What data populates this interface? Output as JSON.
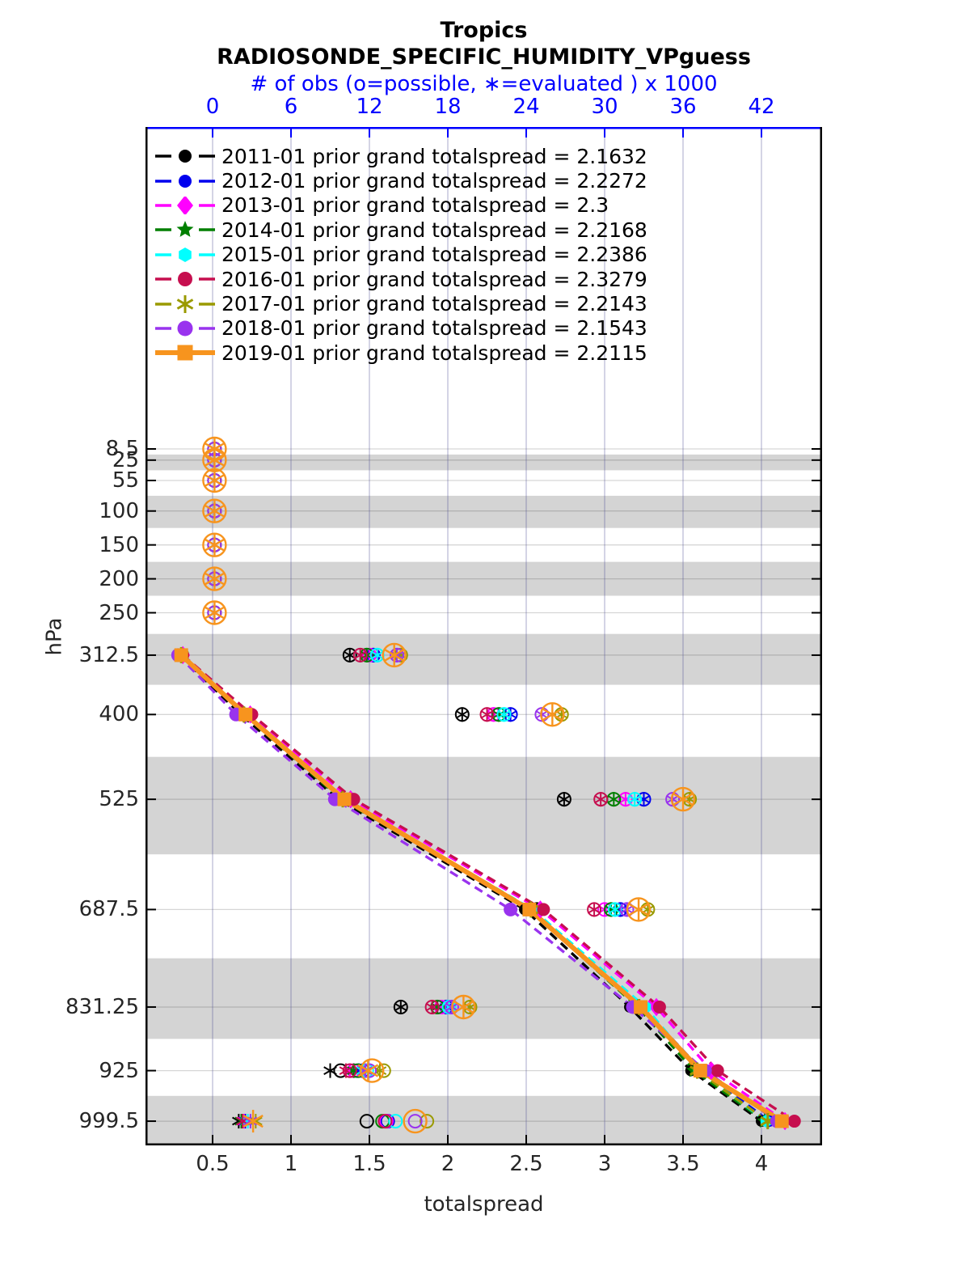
{
  "title": {
    "line1": "Tropics",
    "line2": "RADIOSONDE_SPECIFIC_HUMIDITY_VPguess"
  },
  "obs_axis": {
    "label": "# of obs (o=possible, ∗=evaluated ) x 1000",
    "tick_labels": [
      "0",
      "6",
      "12",
      "18",
      "24",
      "30",
      "36",
      "42"
    ],
    "ticks": [
      0,
      6,
      12,
      18,
      24,
      30,
      36,
      42
    ],
    "color": "#0000ff"
  },
  "x_axis": {
    "label": "totalspread",
    "tick_labels": [
      "0.5",
      "1",
      "1.5",
      "2",
      "2.5",
      "3",
      "3.5",
      "4"
    ],
    "ticks": [
      0.5,
      1,
      1.5,
      2,
      2.5,
      3,
      3.5,
      4
    ]
  },
  "y_axis": {
    "label": "hPa",
    "tick_labels": [
      "8.5",
      "25",
      "55",
      "100",
      "150",
      "200",
      "250",
      "312.5",
      "400",
      "525",
      "687.5",
      "831.25",
      "925",
      "999.5"
    ],
    "ticks": [
      8.5,
      25,
      55,
      100,
      150,
      200,
      250,
      312.5,
      400,
      525,
      687.5,
      831.25,
      925,
      999.5
    ]
  },
  "legend": {
    "items": [
      {
        "label": "2011-01 prior grand totalspread = 2.1632"
      },
      {
        "label": "2012-01 prior grand totalspread = 2.2272"
      },
      {
        "label": "2013-01 prior grand totalspread = 2.3"
      },
      {
        "label": "2014-01 prior grand totalspread = 2.2168"
      },
      {
        "label": "2015-01 prior grand totalspread = 2.2386"
      },
      {
        "label": "2016-01 prior grand totalspread = 2.3279"
      },
      {
        "label": "2017-01 prior grand totalspread = 2.2143"
      },
      {
        "label": "2018-01 prior grand totalspread = 2.1543"
      },
      {
        "label": "2019-01 prior grand totalspread = 2.2115"
      }
    ]
  },
  "chart_data": {
    "type": "line",
    "title": "Tropics",
    "subtitle": "RADIOSONDE_SPECIFIC_HUMIDITY_VPguess",
    "xlabel": "totalspread",
    "ylabel": "hPa",
    "x2label": "# of obs (o=possible, ∗=evaluated ) x 1000",
    "xlim": [
      0.07,
      4.39
    ],
    "obs_xlim": [
      -5.1,
      46.7
    ],
    "levels_hpa": [
      8.5,
      25,
      55,
      100,
      150,
      200,
      250,
      312.5,
      400,
      525,
      687.5,
      831.25,
      925,
      999.5
    ],
    "spread_levels_hpa": [
      312.5,
      400,
      525,
      687.5,
      831.25,
      925,
      999.5
    ],
    "shaded_levels": [
      25,
      100,
      200,
      312.5,
      525,
      831.25,
      999.5
    ],
    "shaded_color": "#d4d4d4",
    "grid": true,
    "legend_position": "top-left-inside",
    "series": [
      {
        "name": "2011-01",
        "grand_totalspread": 2.1632,
        "color": "#000000",
        "marker": "circle",
        "markersize": 7,
        "linestyle": "dashed",
        "big_obs_marker": false,
        "totalspread": [
          0.29,
          0.68,
          1.3,
          2.49,
          3.16,
          3.55,
          4.0
        ],
        "obs_possible": [
          0.15,
          0.15,
          0.15,
          0.15,
          0.15,
          0.15,
          0.15,
          10.5,
          19.1,
          26.9,
          24.8,
          14.4,
          9.8,
          11.8
        ],
        "obs_evaluated": [
          0.15,
          0.15,
          0.15,
          0.15,
          0.15,
          0.15,
          0.15,
          10.5,
          19.1,
          26.9,
          24.8,
          14.4,
          9.0,
          2.0
        ]
      },
      {
        "name": "2012-01",
        "grand_totalspread": 2.2272,
        "color": "#0000ee",
        "marker": "circle",
        "markersize": 7,
        "linestyle": "dashed",
        "big_obs_marker": false,
        "totalspread": [
          0.3,
          0.7,
          1.33,
          2.53,
          3.24,
          3.62,
          4.05
        ],
        "obs_possible": [
          0.15,
          0.15,
          0.15,
          0.15,
          0.15,
          0.15,
          0.15,
          12.3,
          22.8,
          33.0,
          31.2,
          17.9,
          11.5,
          13.4
        ],
        "obs_evaluated": [
          0.15,
          0.15,
          0.15,
          0.15,
          0.15,
          0.15,
          0.15,
          12.3,
          22.8,
          33.0,
          31.2,
          17.9,
          11.2,
          2.5
        ]
      },
      {
        "name": "2013-01",
        "grand_totalspread": 2.3,
        "color": "#ff00ff",
        "marker": "diamond",
        "markersize": 9,
        "linestyle": "dashed",
        "big_obs_marker": false,
        "totalspread": [
          0.31,
          0.74,
          1.38,
          2.59,
          3.33,
          3.68,
          4.15
        ],
        "obs_possible": [
          0.15,
          0.15,
          0.15,
          0.15,
          0.15,
          0.15,
          0.15,
          12.0,
          21.5,
          31.6,
          30.0,
          17.5,
          10.8,
          13.3
        ],
        "obs_evaluated": [
          0.15,
          0.15,
          0.15,
          0.15,
          0.15,
          0.15,
          0.15,
          12.0,
          21.5,
          31.6,
          30.0,
          17.5,
          10.5,
          2.4
        ]
      },
      {
        "name": "2014-01",
        "grand_totalspread": 2.2168,
        "color": "#007f00",
        "marker": "star5",
        "markersize": 10,
        "linestyle": "dashed",
        "big_obs_marker": false,
        "totalspread": [
          0.3,
          0.7,
          1.32,
          2.52,
          3.21,
          3.57,
          4.02
        ],
        "obs_possible": [
          0.15,
          0.15,
          0.15,
          0.15,
          0.15,
          0.15,
          0.15,
          11.8,
          21.9,
          30.7,
          30.5,
          17.2,
          11.1,
          13.0
        ],
        "obs_evaluated": [
          0.15,
          0.15,
          0.15,
          0.15,
          0.15,
          0.15,
          0.15,
          11.8,
          21.9,
          30.7,
          30.5,
          17.2,
          10.8,
          2.2
        ]
      },
      {
        "name": "2015-01",
        "grand_totalspread": 2.2386,
        "color": "#00ffff",
        "marker": "hexagon",
        "markersize": 8,
        "linestyle": "dashed",
        "big_obs_marker": false,
        "totalspread": [
          0.3,
          0.71,
          1.34,
          2.54,
          3.26,
          3.6,
          4.03
        ],
        "obs_possible": [
          0.15,
          0.15,
          0.15,
          0.15,
          0.15,
          0.15,
          0.15,
          12.6,
          22.3,
          32.3,
          30.8,
          18.1,
          11.8,
          14.0
        ],
        "obs_evaluated": [
          0.15,
          0.15,
          0.15,
          0.15,
          0.15,
          0.15,
          0.15,
          12.6,
          22.3,
          32.3,
          30.8,
          18.1,
          11.5,
          2.7
        ]
      },
      {
        "name": "2016-01",
        "grand_totalspread": 2.3279,
        "color": "#c60f4f",
        "marker": "circle",
        "markersize": 8,
        "linestyle": "dashed",
        "big_obs_marker": false,
        "totalspread": [
          0.31,
          0.75,
          1.4,
          2.61,
          3.35,
          3.72,
          4.21
        ],
        "obs_possible": [
          0.15,
          0.15,
          0.15,
          0.15,
          0.15,
          0.15,
          0.15,
          11.3,
          21.0,
          29.7,
          29.2,
          16.8,
          10.5,
          13.2
        ],
        "obs_evaluated": [
          0.15,
          0.15,
          0.15,
          0.15,
          0.15,
          0.15,
          0.15,
          11.3,
          21.0,
          29.7,
          29.2,
          16.8,
          10.2,
          2.3
        ]
      },
      {
        "name": "2017-01",
        "grand_totalspread": 2.2143,
        "color": "#9a9a00",
        "marker": "asterisk",
        "markersize": 10,
        "linestyle": "dashed",
        "big_obs_marker": false,
        "totalspread": [
          0.3,
          0.7,
          1.33,
          2.53,
          3.22,
          3.59,
          4.04
        ],
        "obs_possible": [
          0.15,
          0.15,
          0.15,
          0.15,
          0.15,
          0.15,
          0.15,
          14.4,
          26.7,
          36.5,
          33.3,
          19.7,
          13.1,
          16.4
        ],
        "obs_evaluated": [
          0.15,
          0.15,
          0.15,
          0.15,
          0.15,
          0.15,
          0.15,
          14.4,
          26.7,
          36.5,
          33.3,
          19.7,
          12.8,
          3.3
        ]
      },
      {
        "name": "2018-01",
        "grand_totalspread": 2.1543,
        "color": "#9933ee",
        "marker": "circle",
        "markersize": 8.5,
        "linestyle": "dashed",
        "big_obs_marker": false,
        "totalspread": [
          0.28,
          0.65,
          1.28,
          2.4,
          3.18,
          3.64,
          4.1
        ],
        "obs_possible": [
          0.15,
          0.15,
          0.15,
          0.15,
          0.15,
          0.15,
          0.15,
          14.1,
          25.2,
          35.2,
          31.7,
          18.3,
          12.0,
          15.5
        ],
        "obs_evaluated": [
          0.15,
          0.15,
          0.15,
          0.15,
          0.15,
          0.15,
          0.15,
          14.1,
          25.2,
          35.2,
          31.7,
          18.3,
          11.7,
          2.9
        ]
      },
      {
        "name": "2019-01",
        "grand_totalspread": 2.2115,
        "color": "#f7941e",
        "marker": "square",
        "markersize": 8.5,
        "linestyle": "solid",
        "big_obs_marker": true,
        "totalspread": [
          0.3,
          0.71,
          1.34,
          2.52,
          3.23,
          3.61,
          4.13
        ],
        "obs_possible": [
          0.15,
          0.15,
          0.15,
          0.15,
          0.15,
          0.15,
          0.15,
          13.9,
          26.0,
          36.0,
          32.6,
          19.2,
          12.2,
          15.5
        ],
        "obs_evaluated": [
          0.15,
          0.15,
          0.15,
          0.15,
          0.15,
          0.15,
          0.15,
          13.9,
          26.0,
          36.0,
          32.6,
          19.2,
          11.9,
          3.1
        ]
      }
    ]
  }
}
